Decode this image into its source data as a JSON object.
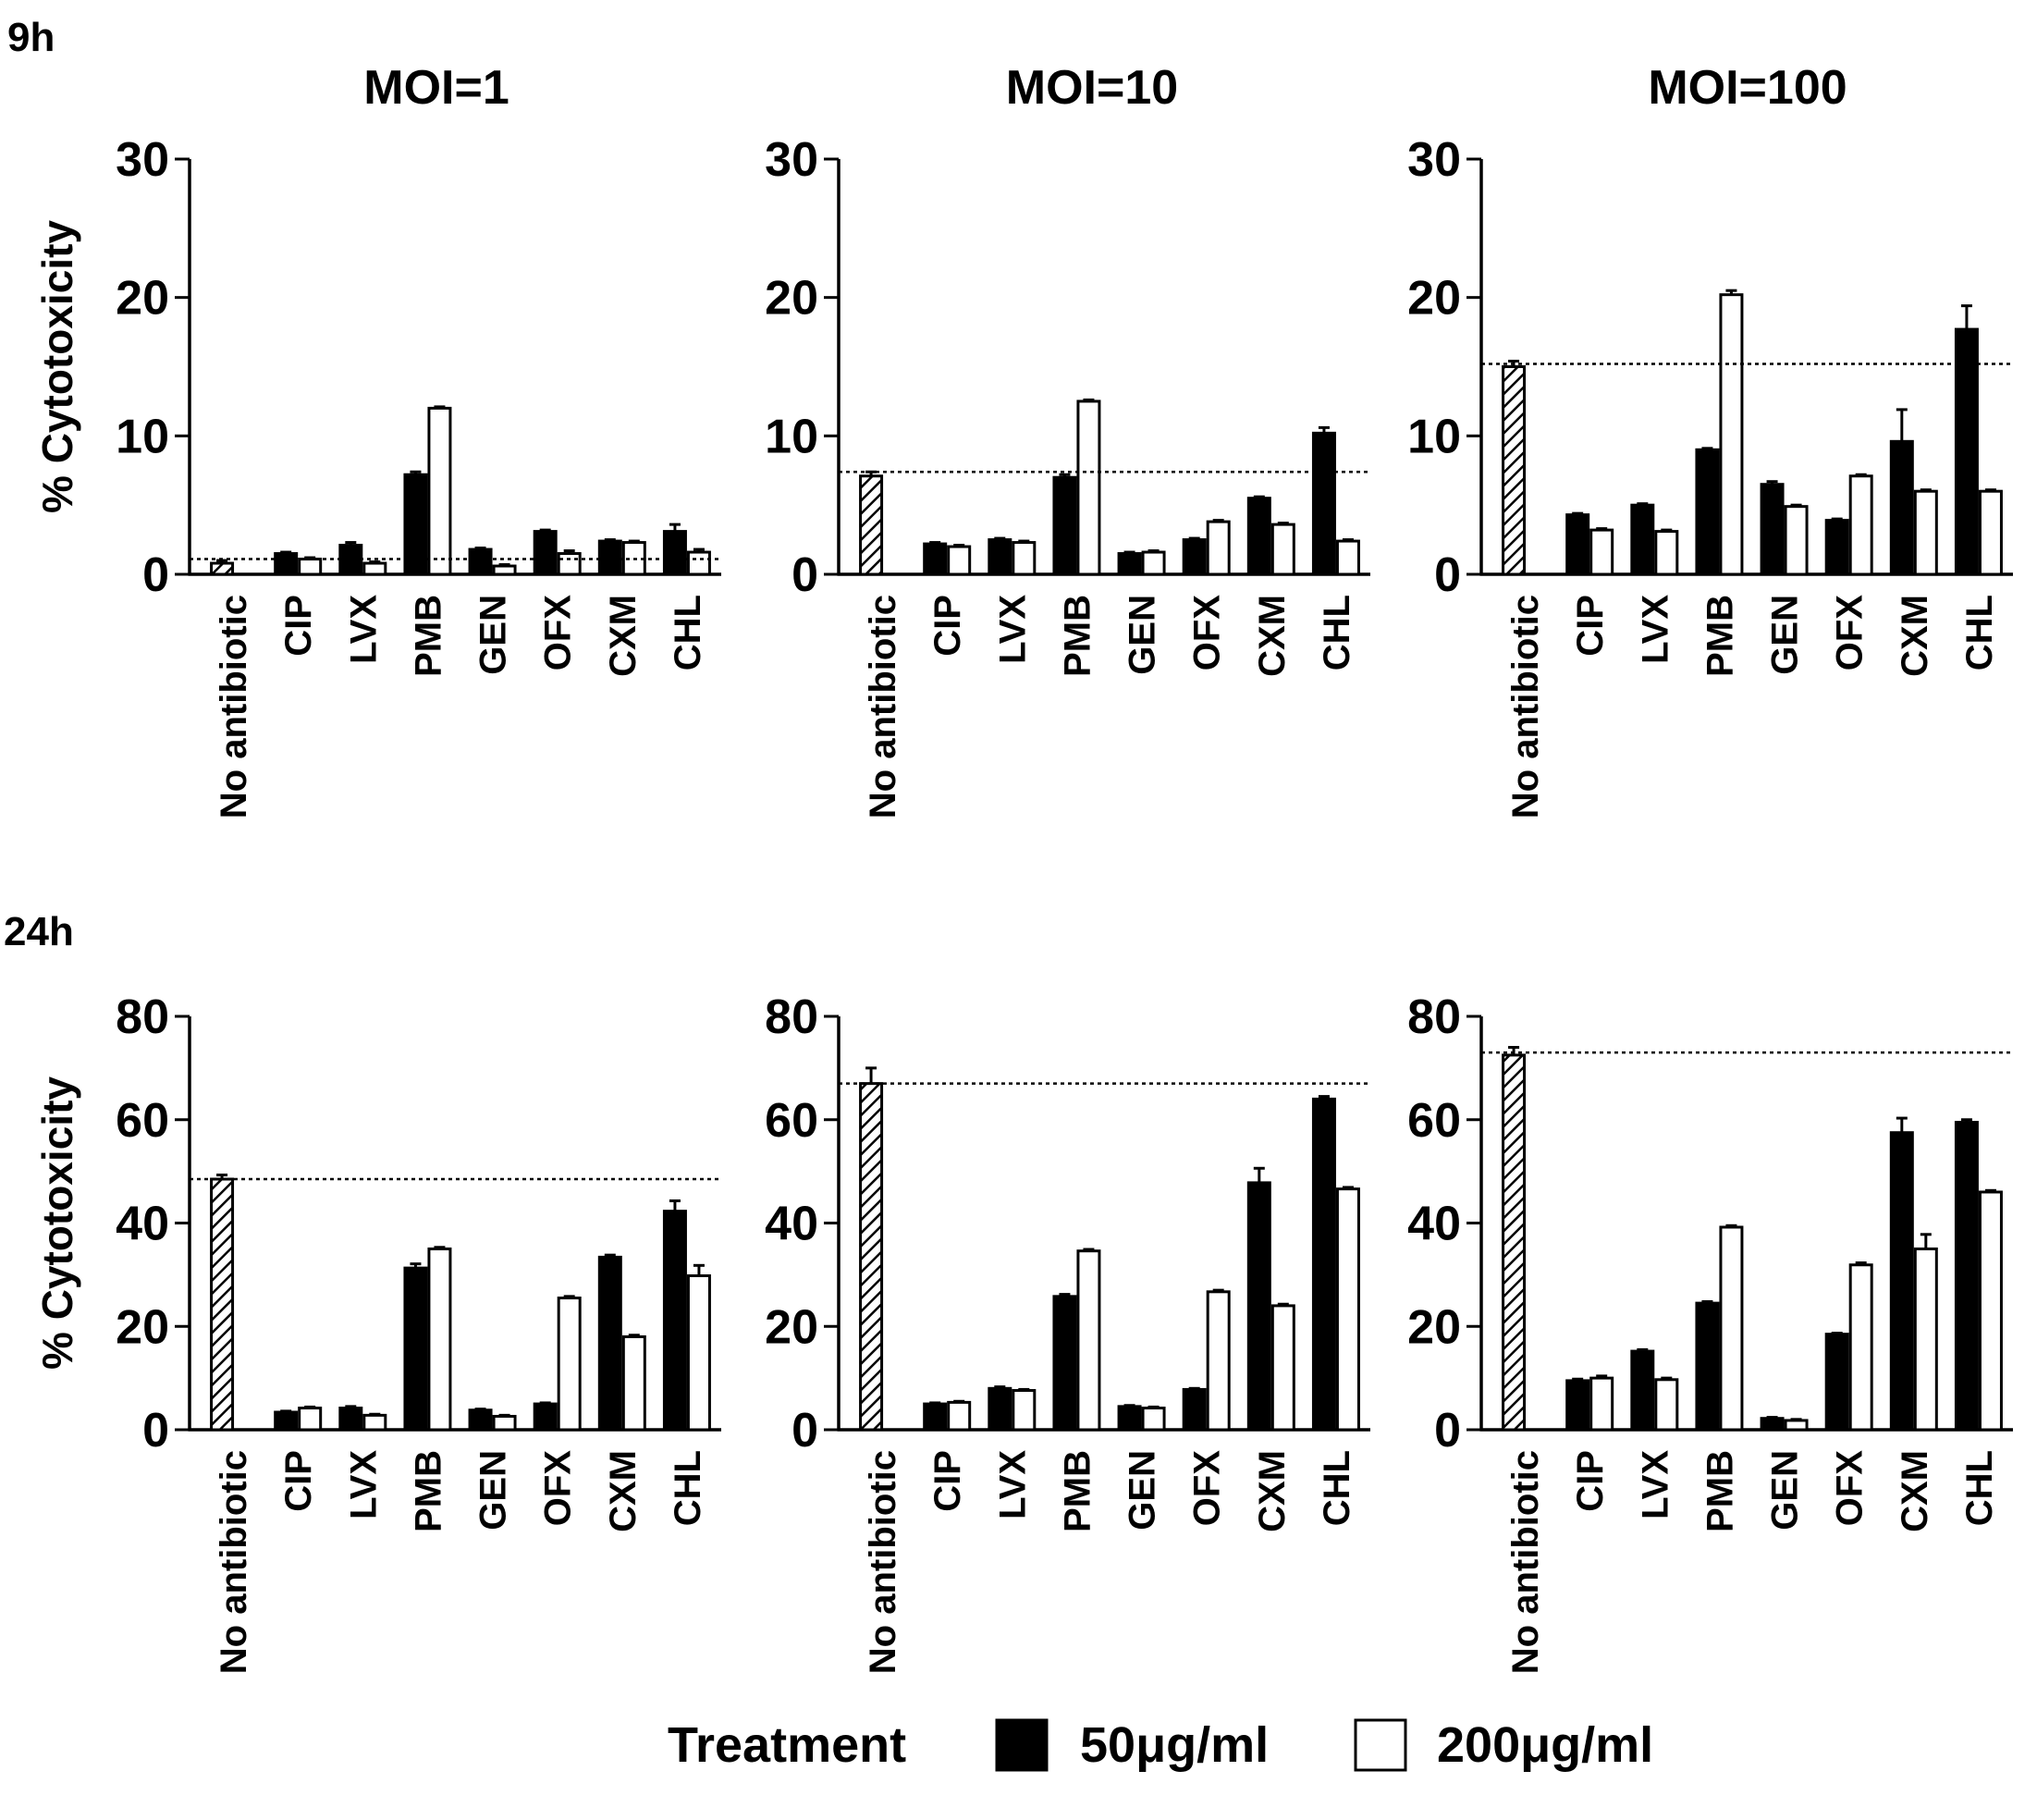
{
  "row_labels": [
    "9h",
    "24h"
  ],
  "column_titles": [
    "MOI=1",
    "MOI=10",
    "MOI=100"
  ],
  "legend": {
    "title": "Treatment",
    "items": [
      {
        "label": "50μg/ml",
        "fill": "#000000"
      },
      {
        "label": "200μg/ml",
        "fill": "#ffffff"
      }
    ]
  },
  "colors": {
    "black": "#000000",
    "white": "#ffffff",
    "dotted_line": "#000000"
  },
  "chart_data": [
    {
      "type": "bar",
      "time": "9h",
      "title": "MOI=1",
      "ylabel": "% Cytotoxicity",
      "ylim": [
        0,
        30
      ],
      "yticks": [
        0,
        10,
        20,
        30
      ],
      "categories": [
        "No antibiotic",
        "CIP",
        "LVX",
        "PMB",
        "GEN",
        "OFX",
        "CXM",
        "CHL"
      ],
      "baseline": 0.8,
      "baseline_err": 0.2,
      "reference_line": 1.1,
      "series": [
        {
          "name": "50μg/ml",
          "values": [
            null,
            1.5,
            2.1,
            7.2,
            1.8,
            3.1,
            2.4,
            3.1
          ],
          "errors": [
            null,
            0.1,
            0.2,
            0.2,
            0.1,
            0.1,
            0.1,
            0.5
          ]
        },
        {
          "name": "200μg/ml",
          "values": [
            null,
            1.1,
            0.8,
            12.0,
            0.6,
            1.5,
            2.3,
            1.6
          ],
          "errors": [
            null,
            0.1,
            0.1,
            0.1,
            0.1,
            0.2,
            0.1,
            0.2
          ]
        }
      ]
    },
    {
      "type": "bar",
      "time": "9h",
      "title": "MOI=10",
      "ylabel": "% Cytotoxicity",
      "ylim": [
        0,
        30
      ],
      "yticks": [
        0,
        10,
        20,
        30
      ],
      "categories": [
        "No antibiotic",
        "CIP",
        "LVX",
        "PMB",
        "GEN",
        "OFX",
        "CXM",
        "CHL"
      ],
      "baseline": 7.1,
      "baseline_err": 0.3,
      "reference_line": 7.4,
      "series": [
        {
          "name": "50μg/ml",
          "values": [
            null,
            2.2,
            2.5,
            7.0,
            1.5,
            2.5,
            5.5,
            10.2
          ],
          "errors": [
            null,
            0.1,
            0.1,
            0.2,
            0.1,
            0.1,
            0.1,
            0.4
          ]
        },
        {
          "name": "200μg/ml",
          "values": [
            null,
            2.0,
            2.3,
            12.5,
            1.6,
            3.8,
            3.6,
            2.4
          ],
          "errors": [
            null,
            0.1,
            0.1,
            0.1,
            0.1,
            0.1,
            0.1,
            0.1
          ]
        }
      ]
    },
    {
      "type": "bar",
      "time": "9h",
      "title": "MOI=100",
      "ylabel": "% Cytotoxicity",
      "ylim": [
        0,
        30
      ],
      "yticks": [
        0,
        10,
        20,
        30
      ],
      "categories": [
        "No antibiotic",
        "CIP",
        "LVX",
        "PMB",
        "GEN",
        "OFX",
        "CXM",
        "CHL"
      ],
      "baseline": 15.0,
      "baseline_err": 0.4,
      "reference_line": 15.2,
      "series": [
        {
          "name": "50μg/ml",
          "values": [
            null,
            4.3,
            5.0,
            9.0,
            6.5,
            3.9,
            9.6,
            17.7
          ],
          "errors": [
            null,
            0.1,
            0.1,
            0.1,
            0.2,
            0.1,
            2.3,
            1.7
          ]
        },
        {
          "name": "200μg/ml",
          "values": [
            null,
            3.2,
            3.1,
            20.2,
            4.9,
            7.1,
            6.0,
            6.0
          ],
          "errors": [
            null,
            0.1,
            0.1,
            0.3,
            0.1,
            0.1,
            0.1,
            0.1
          ]
        }
      ]
    },
    {
      "type": "bar",
      "time": "24h",
      "title": "MOI=1",
      "ylabel": "% Cytotoxicity",
      "ylim": [
        0,
        80
      ],
      "yticks": [
        0,
        20,
        40,
        60,
        80
      ],
      "categories": [
        "No antibiotic",
        "CIP",
        "LVX",
        "PMB",
        "GEN",
        "OFX",
        "CXM",
        "CHL"
      ],
      "baseline": 48.5,
      "baseline_err": 0.8,
      "reference_line": 48.5,
      "series": [
        {
          "name": "50μg/ml",
          "values": [
            null,
            3.4,
            4.2,
            31.3,
            3.8,
            5.0,
            33.4,
            42.3
          ],
          "errors": [
            null,
            0.2,
            0.3,
            0.8,
            0.2,
            0.2,
            0.4,
            2.0
          ]
        },
        {
          "name": "200μg/ml",
          "values": [
            null,
            4.2,
            2.8,
            35.0,
            2.6,
            25.5,
            18.0,
            29.8
          ],
          "errors": [
            null,
            0.2,
            0.2,
            0.3,
            0.2,
            0.3,
            0.3,
            2.0
          ]
        }
      ]
    },
    {
      "type": "bar",
      "time": "24h",
      "title": "MOI=10",
      "ylabel": "% Cytotoxicity",
      "ylim": [
        0,
        80
      ],
      "yticks": [
        0,
        20,
        40,
        60,
        80
      ],
      "categories": [
        "No antibiotic",
        "CIP",
        "LVX",
        "PMB",
        "GEN",
        "OFX",
        "CXM",
        "CHL"
      ],
      "baseline": 67.0,
      "baseline_err": 3.0,
      "reference_line": 67.0,
      "series": [
        {
          "name": "50μg/ml",
          "values": [
            null,
            5.0,
            8.0,
            25.8,
            4.5,
            7.8,
            47.8,
            64.0
          ],
          "errors": [
            null,
            0.2,
            0.3,
            0.4,
            0.2,
            0.2,
            2.8,
            0.5
          ]
        },
        {
          "name": "200μg/ml",
          "values": [
            null,
            5.3,
            7.6,
            34.6,
            4.2,
            26.7,
            24.0,
            46.6
          ],
          "errors": [
            null,
            0.2,
            0.2,
            0.3,
            0.2,
            0.3,
            0.3,
            0.3
          ]
        }
      ]
    },
    {
      "type": "bar",
      "time": "24h",
      "title": "MOI=100",
      "ylabel": "% Cytotoxicity",
      "ylim": [
        0,
        80
      ],
      "yticks": [
        0,
        20,
        40,
        60,
        80
      ],
      "categories": [
        "No antibiotic",
        "CIP",
        "LVX",
        "PMB",
        "GEN",
        "OFX",
        "CXM",
        "CHL"
      ],
      "baseline": 72.5,
      "baseline_err": 1.5,
      "reference_line": 73.0,
      "series": [
        {
          "name": "50μg/ml",
          "values": [
            null,
            9.5,
            15.2,
            24.5,
            2.2,
            18.5,
            57.5,
            59.5
          ],
          "errors": [
            null,
            0.3,
            0.3,
            0.3,
            0.2,
            0.2,
            2.8,
            0.5
          ]
        },
        {
          "name": "200μg/ml",
          "values": [
            null,
            10.0,
            9.7,
            39.2,
            1.8,
            31.9,
            35.0,
            46.0
          ],
          "errors": [
            null,
            0.4,
            0.3,
            0.3,
            0.2,
            0.4,
            2.8,
            0.3
          ]
        }
      ]
    }
  ]
}
